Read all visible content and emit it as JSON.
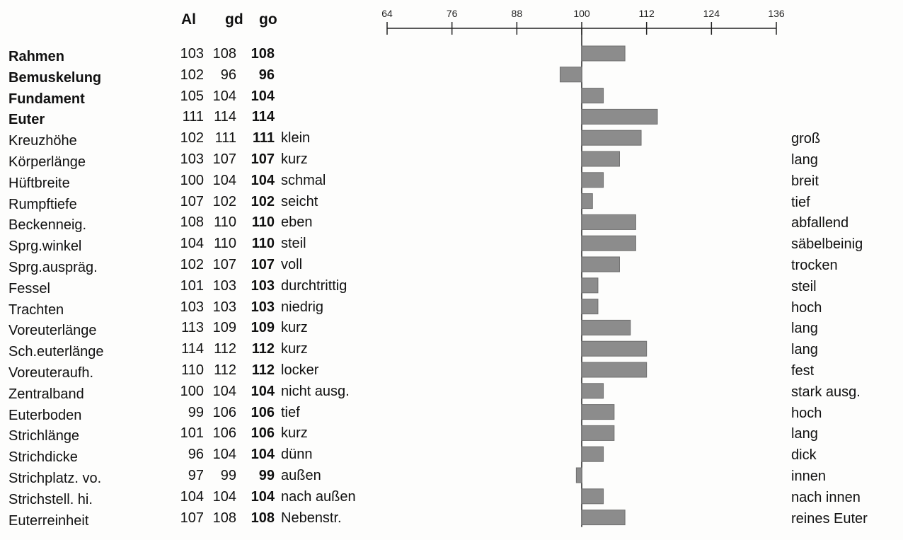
{
  "headers": {
    "al": "Al",
    "gd": "gd",
    "go": "go"
  },
  "chart_data": {
    "type": "bar",
    "orientation": "horizontal",
    "axis_ticks": [
      "64",
      "76",
      "88",
      "100",
      "112",
      "124",
      "136"
    ],
    "xlim": [
      64,
      136
    ],
    "baseline": 100,
    "bar_color": "#8c8c8c",
    "rows": [
      {
        "label": "Rahmen",
        "bold": true,
        "al": "103",
        "gd": "108",
        "go": "108",
        "value": 108,
        "low": "",
        "high": ""
      },
      {
        "label": "Bemuskelung",
        "bold": true,
        "al": "102",
        "gd": "96",
        "go": "96",
        "value": 96,
        "low": "",
        "high": ""
      },
      {
        "label": "Fundament",
        "bold": true,
        "al": "105",
        "gd": "104",
        "go": "104",
        "value": 104,
        "low": "",
        "high": ""
      },
      {
        "label": "Euter",
        "bold": true,
        "al": "111",
        "gd": "114",
        "go": "114",
        "value": 114,
        "low": "",
        "high": ""
      },
      {
        "label": "Kreuzhöhe",
        "bold": false,
        "al": "102",
        "gd": "111",
        "go": "111",
        "value": 111,
        "low": "klein",
        "high": "groß"
      },
      {
        "label": "Körperlänge",
        "bold": false,
        "al": "103",
        "gd": "107",
        "go": "107",
        "value": 107,
        "low": "kurz",
        "high": "lang"
      },
      {
        "label": "Hüftbreite",
        "bold": false,
        "al": "100",
        "gd": "104",
        "go": "104",
        "value": 104,
        "low": "schmal",
        "high": "breit"
      },
      {
        "label": "Rumpftiefe",
        "bold": false,
        "al": "107",
        "gd": "102",
        "go": "102",
        "value": 102,
        "low": "seicht",
        "high": "tief"
      },
      {
        "label": "Beckenneig.",
        "bold": false,
        "al": "108",
        "gd": "110",
        "go": "110",
        "value": 110,
        "low": "eben",
        "high": "abfallend"
      },
      {
        "label": "Sprg.winkel",
        "bold": false,
        "al": "104",
        "gd": "110",
        "go": "110",
        "value": 110,
        "low": "steil",
        "high": "säbelbeinig"
      },
      {
        "label": "Sprg.auspräg.",
        "bold": false,
        "al": "102",
        "gd": "107",
        "go": "107",
        "value": 107,
        "low": "voll",
        "high": "trocken"
      },
      {
        "label": "Fessel",
        "bold": false,
        "al": "101",
        "gd": "103",
        "go": "103",
        "value": 103,
        "low": "durchtrittig",
        "high": "steil"
      },
      {
        "label": "Trachten",
        "bold": false,
        "al": "103",
        "gd": "103",
        "go": "103",
        "value": 103,
        "low": "niedrig",
        "high": "hoch"
      },
      {
        "label": "Voreuterlänge",
        "bold": false,
        "al": "113",
        "gd": "109",
        "go": "109",
        "value": 109,
        "low": "kurz",
        "high": "lang"
      },
      {
        "label": "Sch.euterlänge",
        "bold": false,
        "al": "114",
        "gd": "112",
        "go": "112",
        "value": 112,
        "low": "kurz",
        "high": "lang"
      },
      {
        "label": "Voreuteraufh.",
        "bold": false,
        "al": "110",
        "gd": "112",
        "go": "112",
        "value": 112,
        "low": "locker",
        "high": "fest"
      },
      {
        "label": "Zentralband",
        "bold": false,
        "al": "100",
        "gd": "104",
        "go": "104",
        "value": 104,
        "low": "nicht ausg.",
        "high": "stark ausg."
      },
      {
        "label": "Euterboden",
        "bold": false,
        "al": "99",
        "gd": "106",
        "go": "106",
        "value": 106,
        "low": "tief",
        "high": "hoch"
      },
      {
        "label": "Strichlänge",
        "bold": false,
        "al": "101",
        "gd": "106",
        "go": "106",
        "value": 106,
        "low": "kurz",
        "high": "lang"
      },
      {
        "label": "Strichdicke",
        "bold": false,
        "al": "96",
        "gd": "104",
        "go": "104",
        "value": 104,
        "low": "dünn",
        "high": "dick"
      },
      {
        "label": "Strichplatz. vo.",
        "bold": false,
        "al": "97",
        "gd": "99",
        "go": "99",
        "value": 99,
        "low": "außen",
        "high": "innen"
      },
      {
        "label": "Strichstell. hi.",
        "bold": false,
        "al": "104",
        "gd": "104",
        "go": "104",
        "value": 104,
        "low": "nach außen",
        "high": "nach innen"
      },
      {
        "label": "Euterreinheit",
        "bold": false,
        "al": "107",
        "gd": "108",
        "go": "108",
        "value": 108,
        "low": "Nebenstr.",
        "high": "reines Euter"
      }
    ]
  }
}
